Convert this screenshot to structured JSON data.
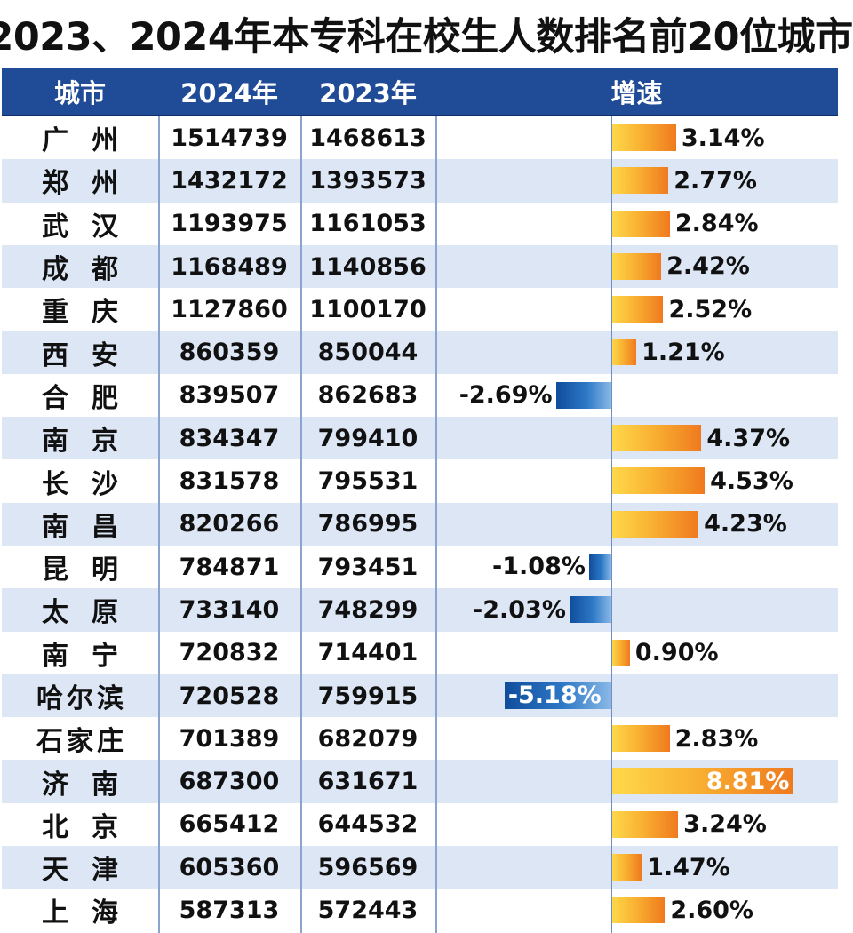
{
  "title": "2023、2024年本专科在校生人数排名前20位城市",
  "header": {
    "city": "城市",
    "y2024": "2024年",
    "y2023": "2023年",
    "growth": "增速"
  },
  "colors": {
    "header_bg": "#1f4b97",
    "row_alt": "#dde6f5",
    "positive_bar": "#f9b233",
    "negative_bar": "#1f5fae"
  },
  "rows": [
    {
      "city": "广州",
      "v2024": "1514739",
      "v2023": "1468613",
      "growth_label": "3.14%"
    },
    {
      "city": "郑州",
      "v2024": "1432172",
      "v2023": "1393573",
      "growth_label": "2.77%"
    },
    {
      "city": "武汉",
      "v2024": "1193975",
      "v2023": "1161053",
      "growth_label": "2.84%"
    },
    {
      "city": "成都",
      "v2024": "1168489",
      "v2023": "1140856",
      "growth_label": "2.42%"
    },
    {
      "city": "重庆",
      "v2024": "1127860",
      "v2023": "1100170",
      "growth_label": "2.52%"
    },
    {
      "city": "西安",
      "v2024": "860359",
      "v2023": "850044",
      "growth_label": "1.21%"
    },
    {
      "city": "合肥",
      "v2024": "839507",
      "v2023": "862683",
      "growth_label": "-2.69%"
    },
    {
      "city": "南京",
      "v2024": "834347",
      "v2023": "799410",
      "growth_label": "4.37%"
    },
    {
      "city": "长沙",
      "v2024": "831578",
      "v2023": "795531",
      "growth_label": "4.53%"
    },
    {
      "city": "南昌",
      "v2024": "820266",
      "v2023": "786995",
      "growth_label": "4.23%"
    },
    {
      "city": "昆明",
      "v2024": "784871",
      "v2023": "793451",
      "growth_label": "-1.08%"
    },
    {
      "city": "太原",
      "v2024": "733140",
      "v2023": "748299",
      "growth_label": "-2.03%"
    },
    {
      "city": "南宁",
      "v2024": "720832",
      "v2023": "714401",
      "growth_label": "0.90%"
    },
    {
      "city": "哈尔滨",
      "v2024": "720528",
      "v2023": "759915",
      "growth_label": "-5.18%"
    },
    {
      "city": "石家庄",
      "v2024": "701389",
      "v2023": "682079",
      "growth_label": "2.83%"
    },
    {
      "city": "济南",
      "v2024": "687300",
      "v2023": "631671",
      "growth_label": "8.81%"
    },
    {
      "city": "北京",
      "v2024": "665412",
      "v2023": "644532",
      "growth_label": "3.24%"
    },
    {
      "city": "天津",
      "v2024": "605360",
      "v2023": "596569",
      "growth_label": "1.47%"
    },
    {
      "city": "上海",
      "v2024": "587313",
      "v2023": "572443",
      "growth_label": "2.60%"
    }
  ],
  "chart_data": {
    "type": "bar",
    "title": "2023、2024年本专科在校生人数排名前20位城市",
    "categories": [
      "广州",
      "郑州",
      "武汉",
      "成都",
      "重庆",
      "西安",
      "合肥",
      "南京",
      "长沙",
      "南昌",
      "昆明",
      "太原",
      "南宁",
      "哈尔滨",
      "石家庄",
      "济南",
      "北京",
      "天津",
      "上海"
    ],
    "series": [
      {
        "name": "2024年",
        "values": [
          1514739,
          1432172,
          1193975,
          1168489,
          1127860,
          860359,
          839507,
          834347,
          831578,
          820266,
          784871,
          733140,
          720832,
          720528,
          701389,
          687300,
          665412,
          605360,
          587313
        ]
      },
      {
        "name": "2023年",
        "values": [
          1468613,
          1393573,
          1161053,
          1140856,
          1100170,
          850044,
          862683,
          799410,
          795531,
          786995,
          793451,
          748299,
          714401,
          759915,
          682079,
          631671,
          644532,
          596569,
          572443
        ]
      },
      {
        "name": "增速",
        "values": [
          3.14,
          2.77,
          2.84,
          2.42,
          2.52,
          1.21,
          -2.69,
          4.37,
          4.53,
          4.23,
          -1.08,
          -2.03,
          0.9,
          -5.18,
          2.83,
          8.81,
          3.24,
          1.47,
          2.6
        ]
      }
    ],
    "orientation": "horizontal",
    "xlim": [
      -5.18,
      8.81
    ]
  }
}
